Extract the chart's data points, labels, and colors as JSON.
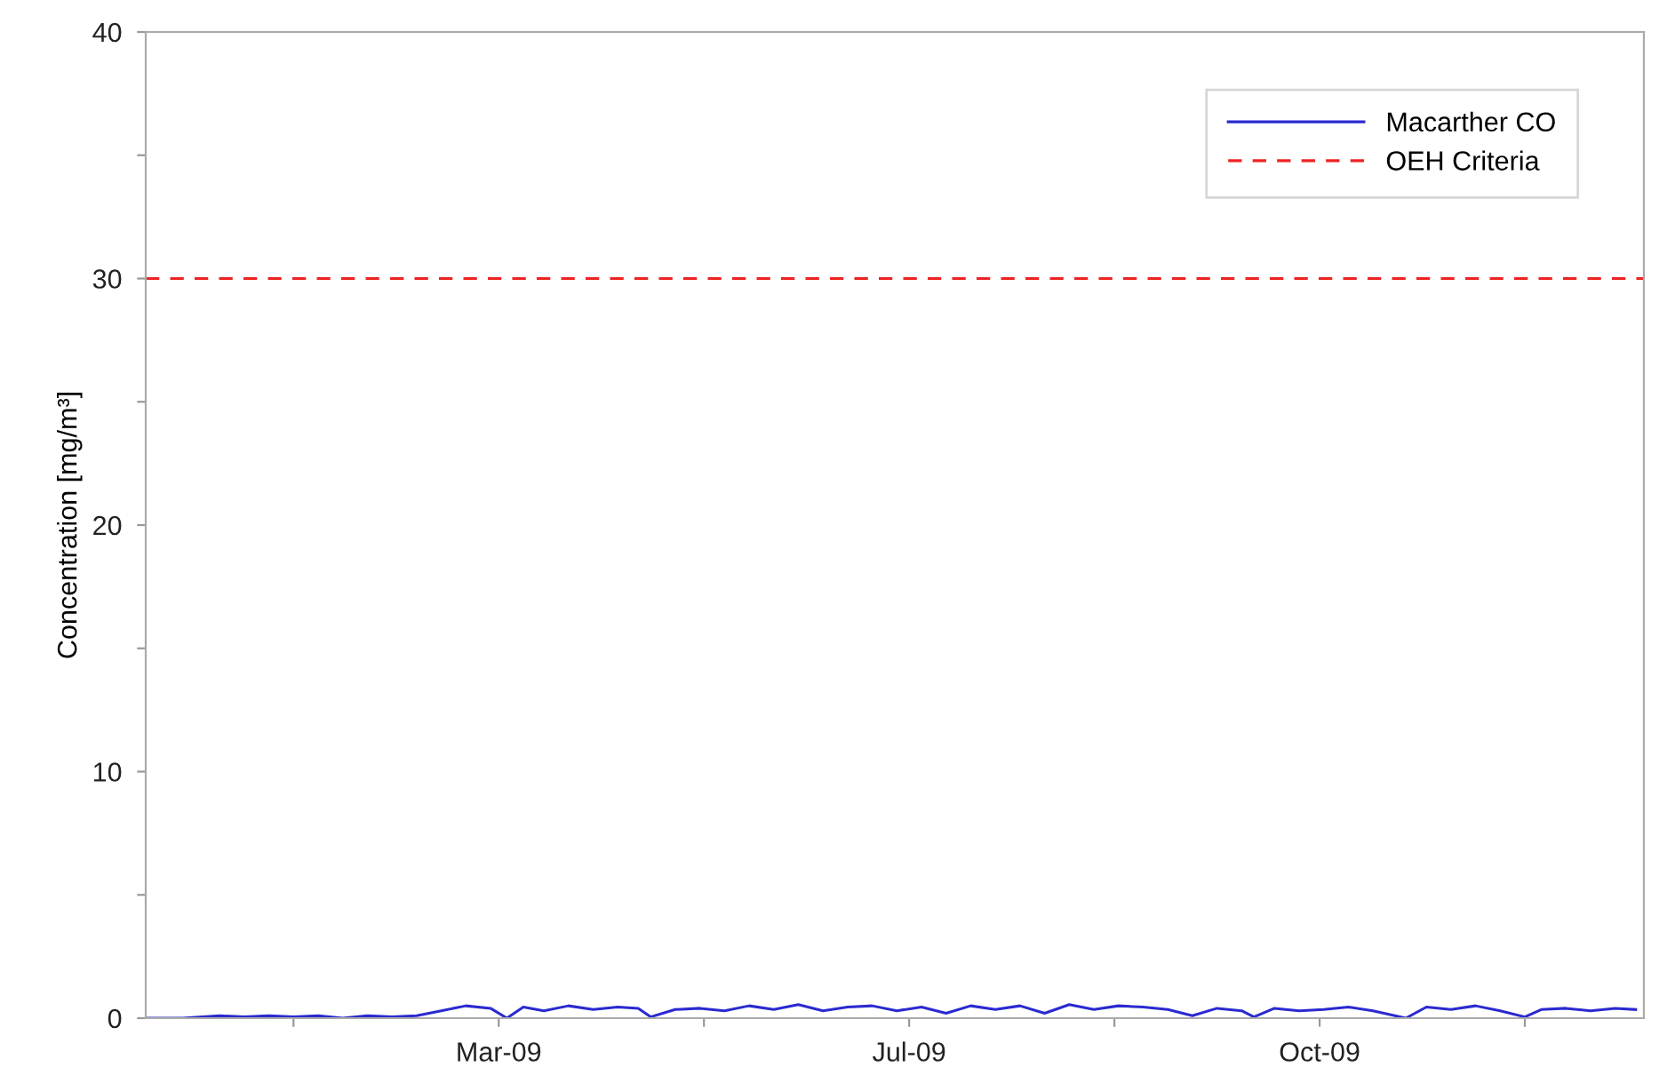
{
  "chart_data": {
    "type": "line",
    "ylabel": "Concentration [mg/m³]",
    "x": [
      "2009-01-01",
      "2009-01-10",
      "2009-01-19",
      "2009-01-25",
      "2009-01-31",
      "2009-02-06",
      "2009-02-12",
      "2009-02-18",
      "2009-02-24",
      "2009-03-02",
      "2009-03-08",
      "2009-03-14",
      "2009-03-20",
      "2009-03-26",
      "2009-03-30",
      "2009-04-03",
      "2009-04-08",
      "2009-04-14",
      "2009-04-20",
      "2009-04-26",
      "2009-05-01",
      "2009-05-04",
      "2009-05-10",
      "2009-05-16",
      "2009-05-22",
      "2009-05-28",
      "2009-06-03",
      "2009-06-09",
      "2009-06-15",
      "2009-06-21",
      "2009-06-27",
      "2009-07-03",
      "2009-07-09",
      "2009-07-15",
      "2009-07-21",
      "2009-07-27",
      "2009-08-02",
      "2009-08-08",
      "2009-08-14",
      "2009-08-20",
      "2009-08-26",
      "2009-09-01",
      "2009-09-07",
      "2009-09-13",
      "2009-09-19",
      "2009-09-25",
      "2009-09-28",
      "2009-10-03",
      "2009-10-09",
      "2009-10-15",
      "2009-10-21",
      "2009-10-27",
      "2009-11-04",
      "2009-11-09",
      "2009-11-15",
      "2009-11-21",
      "2009-11-27",
      "2009-12-03",
      "2009-12-07",
      "2009-12-13",
      "2009-12-19",
      "2009-12-25",
      "2009-12-30"
    ],
    "series": [
      {
        "name": "Macarther CO",
        "color": "#2a2ad0",
        "values": [
          0,
          0,
          0.1,
          0.05,
          0.1,
          0.05,
          0.1,
          0.0,
          0.1,
          0.05,
          0.1,
          0.3,
          0.5,
          0.4,
          0.0,
          0.45,
          0.3,
          0.5,
          0.35,
          0.45,
          0.4,
          0.05,
          0.35,
          0.4,
          0.3,
          0.5,
          0.35,
          0.55,
          0.3,
          0.45,
          0.5,
          0.3,
          0.45,
          0.2,
          0.5,
          0.35,
          0.5,
          0.2,
          0.55,
          0.35,
          0.5,
          0.45,
          0.35,
          0.1,
          0.4,
          0.3,
          0.05,
          0.4,
          0.3,
          0.35,
          0.45,
          0.3,
          0.0,
          0.45,
          0.35,
          0.5,
          0.3,
          0.05,
          0.35,
          0.4,
          0.3,
          0.4,
          0.35
        ]
      }
    ],
    "ref_lines": [
      {
        "axis": "y",
        "value": 30,
        "label": "OEH Criteria",
        "color": "#ee2222",
        "line_style": "dashed"
      }
    ],
    "xlim": [
      "2009-01-01",
      "2010-01-01"
    ],
    "xticks": [
      {
        "value": "2009-02-06",
        "label": null
      },
      {
        "value": "2009-03-28",
        "label": "Mar-09"
      },
      {
        "value": "2009-05-17",
        "label": null
      },
      {
        "value": "2009-07-06",
        "label": "Jul-09"
      },
      {
        "value": "2009-08-25",
        "label": null
      },
      {
        "value": "2009-10-14",
        "label": "Oct-09"
      },
      {
        "value": "2009-12-03",
        "label": null
      }
    ],
    "ylim": [
      0,
      40
    ],
    "yticks": [
      0,
      {
        "value": 5,
        "label": null
      },
      10,
      {
        "value": 15,
        "label": null
      },
      20,
      {
        "value": 25,
        "label": null
      },
      30,
      {
        "value": 35,
        "label": null
      },
      40
    ],
    "grid": false,
    "legend": "top right",
    "marker": "none",
    "line_style": "solid"
  }
}
